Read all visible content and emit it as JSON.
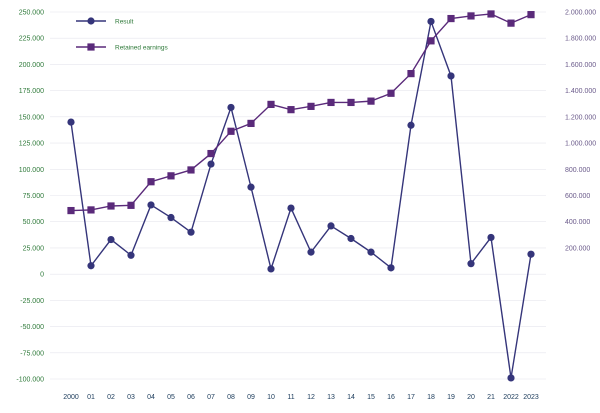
{
  "chart_data": {
    "type": "line",
    "categories": [
      "2000",
      "01",
      "02",
      "03",
      "04",
      "05",
      "06",
      "07",
      "08",
      "09",
      "10",
      "11",
      "12",
      "13",
      "14",
      "15",
      "16",
      "17",
      "18",
      "19",
      "20",
      "21",
      "2022",
      "2023"
    ],
    "left_axis": {
      "min": -100000,
      "max": 250000,
      "step": 25000,
      "tick_labels": [
        "250.000",
        "225.000",
        "200.000",
        "175.000",
        "150.000",
        "125.000",
        "100.000",
        "75.000",
        "50.000",
        "25.000",
        "0",
        "-25.000",
        "-50.000",
        "-75.000",
        "-100.000"
      ]
    },
    "right_axis": {
      "min": 0,
      "max": 2000000,
      "step": 200000,
      "tick_labels": [
        "2.000.000",
        "1.800.000",
        "1.600.000",
        "1.400.000",
        "1.200.000",
        "1.000.000",
        "800.000",
        "600.000",
        "400.000",
        "200.000"
      ]
    },
    "series": [
      {
        "name": "Result",
        "axis": "left",
        "marker": "circle",
        "color": "#35357a",
        "values": [
          145000,
          8000,
          33000,
          18000,
          66000,
          54000,
          40000,
          105000,
          159000,
          83000,
          5000,
          63000,
          21000,
          46000,
          34000,
          21000,
          6000,
          142000,
          241000,
          189000,
          10000,
          35000,
          -99000,
          19000
        ]
      },
      {
        "name": "Retained earnings",
        "axis": "right",
        "marker": "square",
        "color": "#5a2a7a",
        "values": [
          485000,
          490000,
          520000,
          525000,
          705000,
          750000,
          795000,
          920000,
          1090000,
          1150000,
          1295000,
          1255000,
          1280000,
          1310000,
          1310000,
          1320000,
          1380000,
          1530000,
          1780000,
          1950000,
          1970000,
          1985000,
          1915000,
          1980000
        ]
      }
    ],
    "legend_position": "top-left",
    "grid": false
  }
}
